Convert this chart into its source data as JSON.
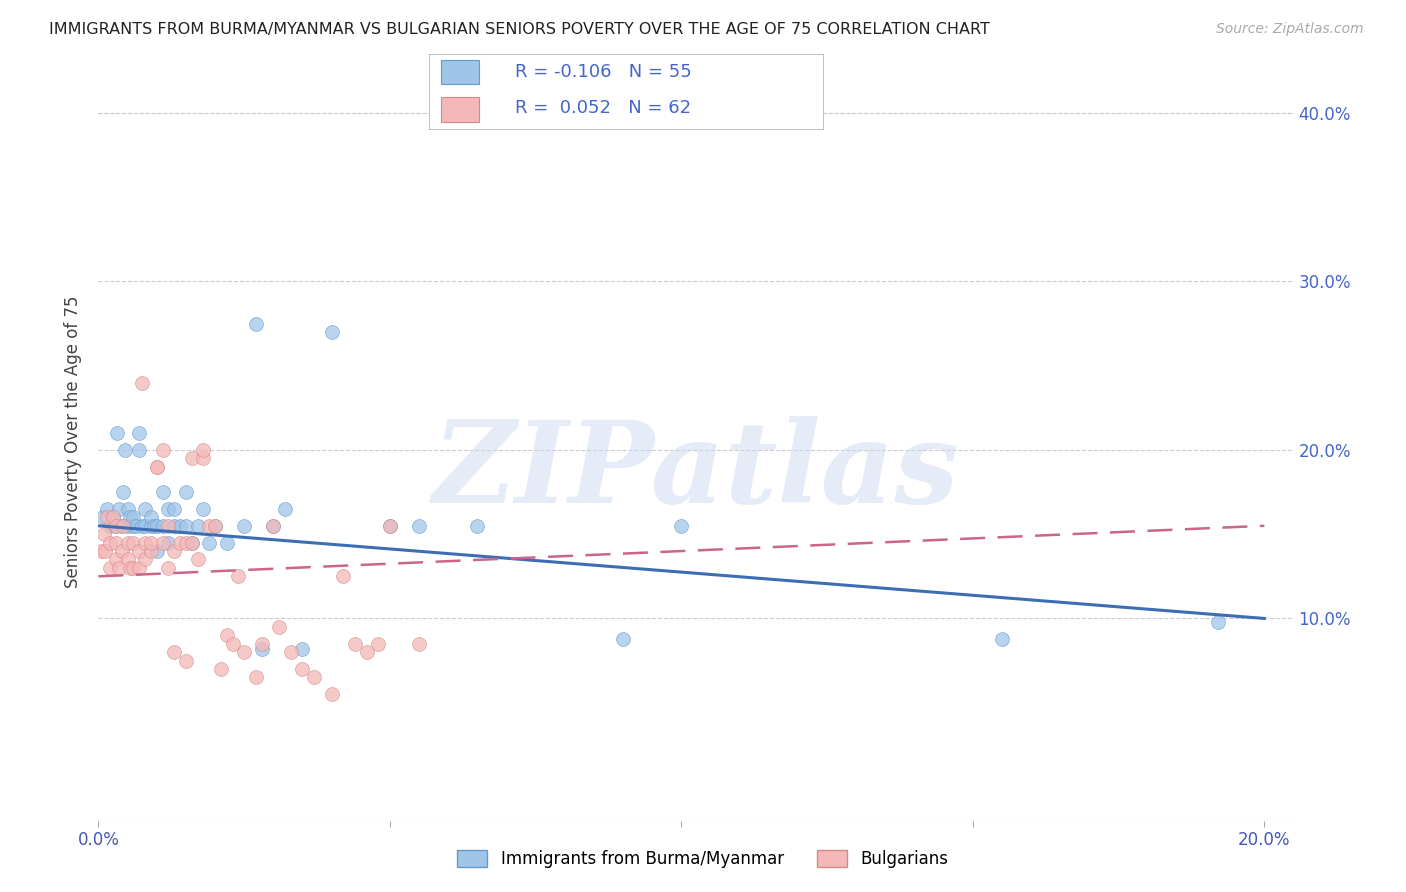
{
  "title": "IMMIGRANTS FROM BURMA/MYANMAR VS BULGARIAN SENIORS POVERTY OVER THE AGE OF 75 CORRELATION CHART",
  "source": "Source: ZipAtlas.com",
  "ylabel": "Seniors Poverty Over the Age of 75",
  "xlim": [
    0.0,
    0.205
  ],
  "ylim": [
    -0.02,
    0.43
  ],
  "yticks": [
    0.0,
    0.1,
    0.2,
    0.3,
    0.4
  ],
  "ytick_labels": [
    "",
    "10.0%",
    "20.0%",
    "30.0%",
    "40.0%"
  ],
  "xticks": [
    0.0,
    0.05,
    0.1,
    0.15,
    0.2
  ],
  "xtick_labels": [
    "0.0%",
    "",
    "",
    "",
    "20.0%"
  ],
  "legend1_label": "Immigrants from Burma/Myanmar",
  "legend2_label": "Bulgarians",
  "R1": -0.106,
  "N1": 55,
  "R2": 0.052,
  "N2": 62,
  "color_blue": "#9fc5e8",
  "color_pink": "#f4b8b8",
  "edge_blue": "#6699cc",
  "edge_pink": "#d48888",
  "line_blue": "#3d6eb4",
  "line_pink": "#cc6688",
  "watermark": "ZIPatlas",
  "blue_scatter_x": [
    0.0008,
    0.0015,
    0.002,
    0.0025,
    0.003,
    0.0032,
    0.0035,
    0.004,
    0.0042,
    0.0045,
    0.005,
    0.005,
    0.0055,
    0.006,
    0.006,
    0.0065,
    0.007,
    0.007,
    0.0075,
    0.008,
    0.008,
    0.009,
    0.009,
    0.0095,
    0.01,
    0.01,
    0.011,
    0.011,
    0.012,
    0.012,
    0.013,
    0.013,
    0.014,
    0.015,
    0.015,
    0.016,
    0.017,
    0.018,
    0.019,
    0.02,
    0.022,
    0.025,
    0.027,
    0.028,
    0.03,
    0.032,
    0.035,
    0.04,
    0.05,
    0.055,
    0.065,
    0.09,
    0.1,
    0.155,
    0.192
  ],
  "blue_scatter_y": [
    0.16,
    0.165,
    0.155,
    0.16,
    0.155,
    0.21,
    0.165,
    0.155,
    0.175,
    0.2,
    0.155,
    0.165,
    0.16,
    0.155,
    0.16,
    0.155,
    0.2,
    0.21,
    0.155,
    0.155,
    0.165,
    0.155,
    0.16,
    0.155,
    0.14,
    0.155,
    0.175,
    0.155,
    0.165,
    0.145,
    0.155,
    0.165,
    0.155,
    0.175,
    0.155,
    0.145,
    0.155,
    0.165,
    0.145,
    0.155,
    0.145,
    0.155,
    0.275,
    0.082,
    0.155,
    0.165,
    0.082,
    0.27,
    0.155,
    0.155,
    0.155,
    0.088,
    0.155,
    0.088,
    0.098
  ],
  "pink_scatter_x": [
    0.0005,
    0.001,
    0.0012,
    0.0015,
    0.002,
    0.002,
    0.0025,
    0.003,
    0.003,
    0.003,
    0.0035,
    0.004,
    0.0042,
    0.005,
    0.005,
    0.0055,
    0.006,
    0.006,
    0.007,
    0.007,
    0.0075,
    0.008,
    0.008,
    0.009,
    0.009,
    0.01,
    0.01,
    0.011,
    0.011,
    0.012,
    0.012,
    0.013,
    0.013,
    0.014,
    0.015,
    0.015,
    0.016,
    0.016,
    0.017,
    0.018,
    0.018,
    0.019,
    0.02,
    0.021,
    0.022,
    0.023,
    0.024,
    0.025,
    0.027,
    0.028,
    0.03,
    0.031,
    0.033,
    0.035,
    0.037,
    0.04,
    0.042,
    0.044,
    0.046,
    0.048,
    0.05,
    0.055
  ],
  "pink_scatter_y": [
    0.14,
    0.15,
    0.14,
    0.16,
    0.145,
    0.13,
    0.16,
    0.155,
    0.135,
    0.145,
    0.13,
    0.14,
    0.155,
    0.135,
    0.145,
    0.13,
    0.145,
    0.13,
    0.13,
    0.14,
    0.24,
    0.145,
    0.135,
    0.14,
    0.145,
    0.19,
    0.19,
    0.2,
    0.145,
    0.155,
    0.13,
    0.08,
    0.14,
    0.145,
    0.145,
    0.075,
    0.195,
    0.145,
    0.135,
    0.195,
    0.2,
    0.155,
    0.155,
    0.07,
    0.09,
    0.085,
    0.125,
    0.08,
    0.065,
    0.085,
    0.155,
    0.095,
    0.08,
    0.07,
    0.065,
    0.055,
    0.125,
    0.085,
    0.08,
    0.085,
    0.155,
    0.085
  ]
}
